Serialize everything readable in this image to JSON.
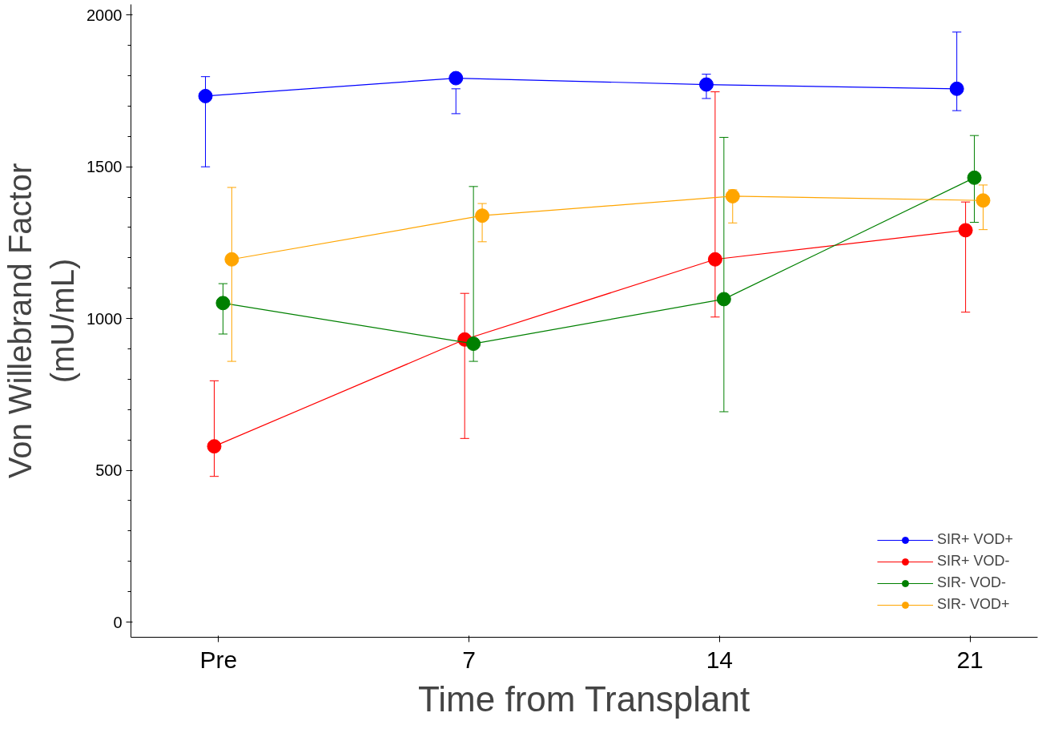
{
  "chart_data": {
    "type": "line",
    "xlabel": "Time from Transplant",
    "ylabel": "Von Willebrand Factor\n(mU/mL)",
    "categories": [
      "Pre",
      "7",
      "14",
      "21"
    ],
    "ylim": [
      -50,
      2035
    ],
    "yticks": [
      0,
      500,
      1000,
      1500,
      2000
    ],
    "marker": "circle",
    "line_style": "solid",
    "grid": false,
    "legend": "bottom right",
    "series": [
      {
        "name": "SIR+ VOD+",
        "color": "#0000ff",
        "values": [
          1733,
          1792,
          1771,
          1757
        ],
        "errors": [
          [
            1500,
            1797
          ],
          [
            1675,
            1757
          ],
          [
            1725,
            1805
          ],
          [
            1685,
            1944
          ]
        ]
      },
      {
        "name": "SIR+ VOD-",
        "color": "#ff0000",
        "values": [
          579,
          931,
          1195,
          1291
        ],
        "errors": [
          [
            480,
            795
          ],
          [
            605,
            1083
          ],
          [
            1005,
            1747
          ],
          [
            1021,
            1384
          ]
        ]
      },
      {
        "name": "SIR- VOD-",
        "color": "#008000",
        "values": [
          1051,
          917,
          1064,
          1464
        ],
        "errors": [
          [
            949,
            1115
          ],
          [
            859,
            1435
          ],
          [
            693,
            1597
          ],
          [
            1317,
            1603
          ]
        ]
      },
      {
        "name": "SIR- VOD+",
        "color": "#ffa500",
        "values": [
          1195,
          1339,
          1403,
          1389
        ],
        "errors": [
          [
            859,
            1432
          ],
          [
            1253,
            1379
          ],
          [
            1315,
            1424
          ],
          [
            1293,
            1440
          ]
        ]
      }
    ]
  }
}
